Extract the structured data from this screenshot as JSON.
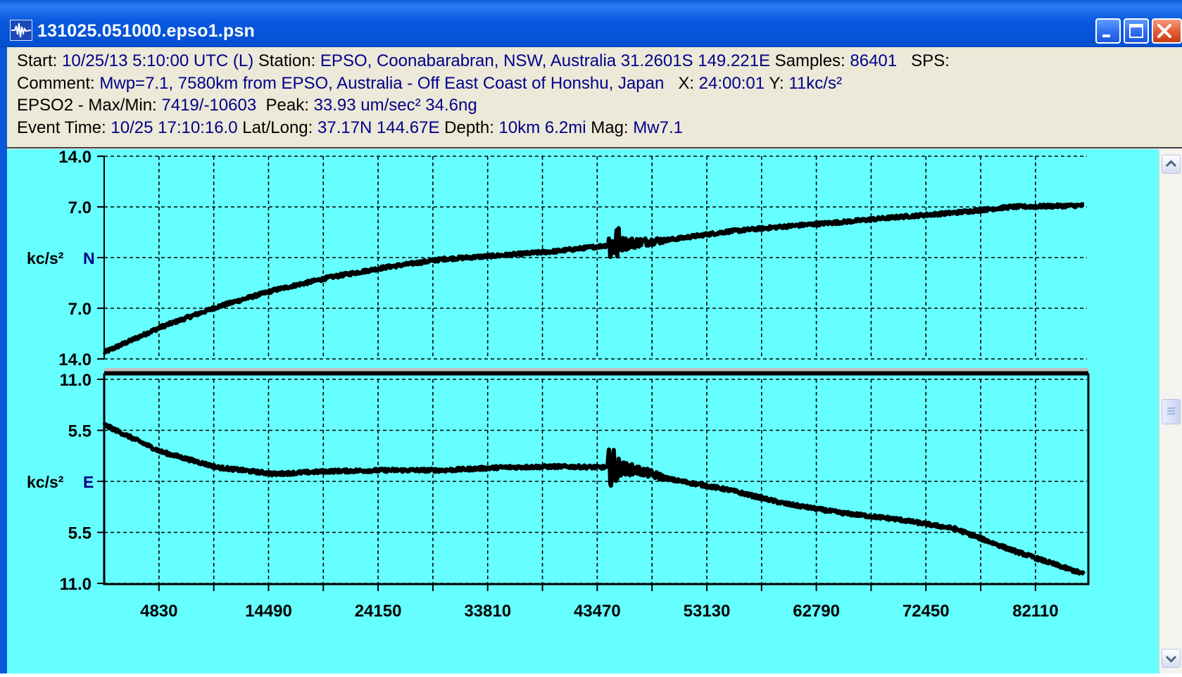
{
  "window": {
    "title": "131025.051000.epso1.psn",
    "icons": {
      "app": "seismograph-icon",
      "minimize": "minimize-icon",
      "maximize": "maximize-icon",
      "close": "close-icon"
    }
  },
  "info": {
    "line1": {
      "start_label": "Start: ",
      "start_value": "10/25/13  5:10:00 UTC (L)",
      "station_label": " Station: ",
      "station_value": "EPSO, Coonabarabran, NSW, Australia 31.2601S 149.221E",
      "samples_label": " Samples: ",
      "samples_value": "86401",
      "sps_label": "   SPS:"
    },
    "line2": {
      "comment_label": "Comment: ",
      "comment_value": "Mwp=7.1, 7580km from EPSO, Australia - Off East Coast of Honshu, Japan",
      "x_label": "   X: ",
      "x_value": "24:00:01",
      "y_label": " Y: ",
      "y_value": "11kc/s²"
    },
    "line3": {
      "channel_label": "EPSO2 - Max/Min: ",
      "maxmin_value": "7419/-10603",
      "peak_label": "  Peak: ",
      "peak_value": "33.93 um/sec² 34.6ng"
    },
    "line4": {
      "event_label": "Event Time: ",
      "event_value": "10/25 17:10:16.0",
      "latlong_label": " Lat/Long: ",
      "latlong_value": "37.17N 144.67E",
      "depth_label": " Depth: ",
      "depth_value": "10km 6.2mi",
      "mag_label": " Mag: ",
      "mag_value": "Mw7.1"
    }
  },
  "colors": {
    "plot_bg": "#66ffff",
    "trace": "#000000",
    "grid": "#000000",
    "axis_label_unit": "#000000",
    "axis_label_channel": "#00008b"
  },
  "chart_data": [
    {
      "type": "line",
      "channel": "N",
      "unit": "kc/s²",
      "ytick_labels": [
        "14.0",
        "7.0",
        "",
        "7.0",
        "14.0"
      ],
      "ylim": [
        -14,
        14
      ],
      "xlim": [
        0,
        86401
      ],
      "x_ticks": [
        4830,
        14490,
        24150,
        33810,
        43470,
        53130,
        62790,
        72450,
        82110
      ],
      "grid": true,
      "x": [
        0,
        5000,
        10000,
        15000,
        20000,
        25000,
        30000,
        35000,
        40000,
        45000,
        50000,
        55000,
        60000,
        65000,
        70000,
        75000,
        80000,
        86401
      ],
      "values": [
        -13.1,
        -9.6,
        -6.8,
        -4.5,
        -2.7,
        -1.3,
        -0.2,
        0.3,
        0.9,
        1.8,
        2.5,
        3.6,
        4.3,
        4.9,
        5.6,
        6.2,
        7.0,
        7.2
      ],
      "event_x": 44800
    },
    {
      "type": "line",
      "channel": "E",
      "unit": "kc/s²",
      "ytick_labels": [
        "11.0",
        "5.5",
        "",
        "5.5",
        "11.0"
      ],
      "ylim": [
        -11,
        11
      ],
      "xlim": [
        0,
        86401
      ],
      "x_ticks": [
        4830,
        14490,
        24150,
        33810,
        43470,
        53130,
        62790,
        72450,
        82110
      ],
      "grid": true,
      "x": [
        0,
        5000,
        10000,
        15000,
        20000,
        25000,
        30000,
        35000,
        40000,
        44800,
        47000,
        50000,
        55000,
        60000,
        65000,
        70000,
        75000,
        80000,
        86401
      ],
      "values": [
        6.1,
        3.2,
        1.5,
        0.8,
        1.1,
        1.2,
        1.2,
        1.5,
        1.6,
        1.5,
        1.2,
        0.2,
        -0.9,
        -2.4,
        -3.4,
        -4.1,
        -5.1,
        -7.4,
        -10.0
      ],
      "event_x": 44800
    }
  ]
}
